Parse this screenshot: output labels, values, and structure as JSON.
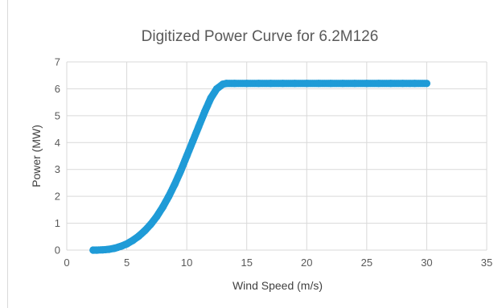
{
  "chart_data": {
    "type": "scatter",
    "title": "Digitized Power Curve for 6.2M126",
    "xlabel": "Wind Speed (m/s)",
    "ylabel": "Power (MW)",
    "xlim": [
      0,
      35
    ],
    "ylim": [
      0,
      7
    ],
    "xticks": [
      "0",
      "5",
      "10",
      "15",
      "20",
      "25",
      "30",
      "35"
    ],
    "yticks": [
      "0",
      "1",
      "2",
      "3",
      "4",
      "5",
      "6",
      "7"
    ],
    "grid": true,
    "legend": "none",
    "marker_color": "#1f9bd7",
    "x": [
      2.2,
      2.5,
      3.0,
      3.5,
      4.0,
      4.5,
      5.0,
      5.5,
      6.0,
      6.5,
      7.0,
      7.5,
      8.0,
      8.5,
      9.0,
      9.5,
      10.0,
      10.5,
      11.0,
      11.5,
      12.0,
      12.5,
      13.0,
      13.3,
      14,
      15,
      16,
      17,
      18,
      19,
      20,
      21,
      22,
      23,
      24,
      25,
      26,
      27,
      28,
      29,
      30
    ],
    "y": [
      0.0,
      0.0,
      0.01,
      0.03,
      0.07,
      0.14,
      0.23,
      0.36,
      0.52,
      0.72,
      0.96,
      1.25,
      1.6,
      2.0,
      2.45,
      2.95,
      3.5,
      4.05,
      4.6,
      5.15,
      5.65,
      6.0,
      6.17,
      6.2,
      6.2,
      6.2,
      6.2,
      6.2,
      6.2,
      6.2,
      6.2,
      6.2,
      6.2,
      6.2,
      6.2,
      6.2,
      6.2,
      6.2,
      6.2,
      6.2,
      6.2
    ]
  }
}
